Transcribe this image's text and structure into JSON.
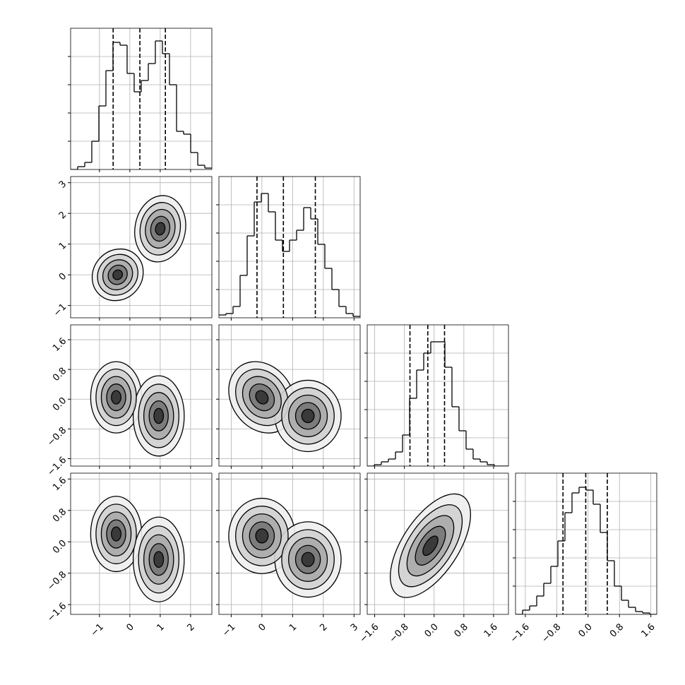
{
  "chart_data": {
    "type": "corner",
    "grid": true,
    "color": "#000000",
    "params": [
      {
        "lim": [
          -1.95,
          2.7
        ],
        "ticks": [
          {
            "value": -1,
            "label": "−1"
          },
          0,
          1,
          2
        ],
        "quantiles": [
          -0.55,
          0.33,
          1.17
        ],
        "hist": [
          0,
          2,
          5,
          20,
          45,
          70,
          90,
          88,
          68,
          55,
          63,
          75,
          91,
          82,
          60,
          27,
          25,
          12,
          3,
          1
        ]
      },
      {
        "lim": [
          -1.4,
          3.2
        ],
        "ticks": [
          {
            "value": -1,
            "label": "−1"
          },
          0,
          1,
          2,
          3
        ],
        "quantiles": [
          -0.16,
          0.7,
          1.74
        ],
        "hist": [
          2,
          3,
          8,
          30,
          58,
          82,
          88,
          75,
          55,
          47,
          55,
          62,
          78,
          70,
          52,
          35,
          20,
          8,
          3,
          1
        ]
      },
      {
        "lim": [
          -1.8,
          2.0
        ],
        "ticks": [
          {
            "value": -1.6,
            "label": "−1.6"
          },
          {
            "value": -0.8,
            "label": "−0.8"
          },
          {
            "value": 0,
            "label": "0.0"
          },
          0.8,
          1.6
        ],
        "quantiles": [
          -0.65,
          -0.17,
          0.28
        ],
        "hist": [
          0,
          1,
          3,
          5,
          10,
          22,
          48,
          68,
          80,
          88,
          88,
          70,
          42,
          25,
          12,
          5,
          3,
          1,
          0,
          0
        ]
      },
      {
        "lim": [
          -1.85,
          1.75
        ],
        "ticks": [
          {
            "value": -1.6,
            "label": "−1.6"
          },
          {
            "value": -0.8,
            "label": "−0.8"
          },
          {
            "value": 0,
            "label": "0.0"
          },
          0.8,
          1.6
        ],
        "quantiles": [
          -0.64,
          -0.06,
          0.49
        ],
        "hist": [
          0,
          3,
          6,
          13,
          22,
          34,
          52,
          72,
          86,
          90,
          88,
          78,
          58,
          38,
          20,
          10,
          5,
          2,
          1,
          0
        ]
      }
    ],
    "hist_ylim": [
      0,
      100
    ],
    "hist_yticks": [
      20,
      40,
      60,
      80
    ],
    "pairs": [
      {
        "x": 0,
        "y": 1,
        "clusters": [
          {
            "x": -0.4,
            "y": 0.0,
            "sx": 0.35,
            "sy": 0.35,
            "rho": 0.1
          },
          {
            "x": 1.0,
            "y": 1.5,
            "sx": 0.35,
            "sy": 0.45,
            "rho": 0.1
          }
        ]
      },
      {
        "x": 0,
        "y": 2,
        "clusters": [
          {
            "x": -0.45,
            "y": 0.05,
            "sx": 0.35,
            "sy": 0.4,
            "rho": 0
          },
          {
            "x": 0.95,
            "y": -0.45,
            "sx": 0.35,
            "sy": 0.45,
            "rho": 0
          }
        ]
      },
      {
        "x": 1,
        "y": 2,
        "clusters": [
          {
            "x": 0.0,
            "y": 0.05,
            "sx": 0.45,
            "sy": 0.4,
            "rho": -0.2
          },
          {
            "x": 1.5,
            "y": -0.45,
            "sx": 0.45,
            "sy": 0.4,
            "rho": 0
          }
        ]
      },
      {
        "x": 0,
        "y": 3,
        "clusters": [
          {
            "x": -0.45,
            "y": 0.2,
            "sx": 0.35,
            "sy": 0.4,
            "rho": 0
          },
          {
            "x": 0.95,
            "y": -0.45,
            "sx": 0.35,
            "sy": 0.45,
            "rho": 0
          }
        ]
      },
      {
        "x": 1,
        "y": 3,
        "clusters": [
          {
            "x": 0.0,
            "y": 0.15,
            "sx": 0.45,
            "sy": 0.4,
            "rho": 0
          },
          {
            "x": 1.5,
            "y": -0.45,
            "sx": 0.45,
            "sy": 0.4,
            "rho": 0
          }
        ]
      },
      {
        "x": 2,
        "y": 3,
        "clusters": [
          {
            "x": -0.1,
            "y": -0.1,
            "sx": 0.45,
            "sy": 0.55,
            "rho": 0.6
          }
        ]
      }
    ]
  }
}
